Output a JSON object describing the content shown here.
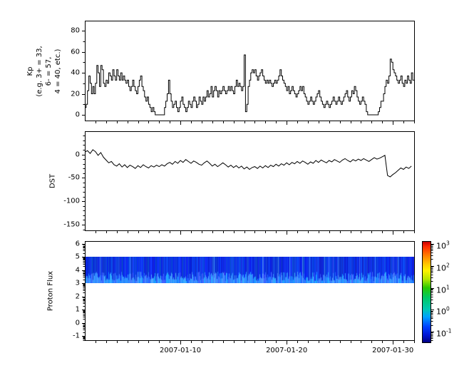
{
  "figure": {
    "background": "#ffffff",
    "line_color": "#000000"
  },
  "x_axis": {
    "start_date": "2007-01-01",
    "span_days": 31.07,
    "major_ticks": [
      {
        "day": 9,
        "label": "2007-01-10"
      },
      {
        "day": 19,
        "label": "2007-01-20"
      },
      {
        "day": 29,
        "label": "2007-01-30"
      }
    ],
    "minor_tick_every_days": 1
  },
  "chart_data": [
    {
      "type": "line",
      "name": "kp",
      "style": "steps-post",
      "ylabel": "Kp\n(e.g. 3+ = 33,\n6- = 57,\n4 = 40, etc.)",
      "ylim": [
        -6.1,
        89.6
      ],
      "yticks": [
        0,
        20,
        40,
        60,
        80
      ],
      "y_minor_step": 10,
      "x_step_hours": 3,
      "values": [
        7,
        10,
        23,
        37,
        30,
        20,
        27,
        20,
        30,
        47,
        40,
        27,
        47,
        43,
        30,
        27,
        33,
        30,
        40,
        37,
        33,
        43,
        37,
        33,
        43,
        37,
        33,
        40,
        33,
        37,
        33,
        30,
        33,
        27,
        23,
        27,
        33,
        27,
        23,
        20,
        27,
        33,
        37,
        27,
        23,
        17,
        13,
        17,
        10,
        7,
        3,
        7,
        3,
        0,
        0,
        0,
        0,
        0,
        0,
        0,
        7,
        13,
        20,
        33,
        20,
        13,
        7,
        10,
        13,
        7,
        3,
        7,
        13,
        17,
        10,
        7,
        3,
        7,
        13,
        10,
        7,
        13,
        17,
        13,
        7,
        10,
        17,
        13,
        10,
        17,
        13,
        17,
        23,
        17,
        20,
        27,
        17,
        23,
        27,
        23,
        17,
        23,
        20,
        23,
        27,
        23,
        20,
        23,
        27,
        23,
        27,
        23,
        20,
        27,
        33,
        27,
        30,
        27,
        23,
        27,
        57,
        3,
        10,
        27,
        33,
        40,
        43,
        40,
        43,
        37,
        33,
        37,
        40,
        43,
        37,
        33,
        30,
        33,
        30,
        33,
        30,
        27,
        30,
        33,
        30,
        33,
        37,
        43,
        37,
        33,
        30,
        27,
        23,
        27,
        20,
        23,
        27,
        23,
        20,
        17,
        20,
        23,
        27,
        23,
        27,
        20,
        17,
        13,
        10,
        13,
        17,
        13,
        10,
        13,
        17,
        20,
        23,
        17,
        13,
        10,
        7,
        10,
        13,
        10,
        7,
        10,
        13,
        17,
        13,
        10,
        13,
        17,
        13,
        10,
        13,
        17,
        20,
        23,
        17,
        13,
        17,
        23,
        20,
        27,
        23,
        17,
        13,
        10,
        13,
        17,
        13,
        10,
        3,
        0,
        0,
        0,
        0,
        0,
        0,
        0,
        0,
        3,
        7,
        13,
        13,
        20,
        27,
        33,
        30,
        37,
        53,
        50,
        43,
        40,
        37,
        33,
        30,
        33,
        37,
        30,
        27,
        33,
        30,
        37,
        33,
        30,
        40,
        33
      ]
    },
    {
      "type": "line",
      "name": "dst",
      "style": "linear",
      "ylabel": "DST",
      "ylim": [
        -163.7,
        49.5
      ],
      "yticks": [
        0,
        -50,
        -100,
        -150
      ],
      "y_minor_step": 10,
      "x_step_hours": 6,
      "values": [
        5,
        8,
        2,
        10,
        6,
        -2,
        4,
        -6,
        -12,
        -18,
        -15,
        -22,
        -25,
        -20,
        -27,
        -22,
        -28,
        -23,
        -26,
        -30,
        -24,
        -28,
        -22,
        -26,
        -29,
        -24,
        -27,
        -23,
        -26,
        -22,
        -25,
        -20,
        -17,
        -21,
        -15,
        -19,
        -13,
        -17,
        -11,
        -15,
        -19,
        -14,
        -17,
        -21,
        -23,
        -18,
        -14,
        -19,
        -25,
        -21,
        -26,
        -22,
        -18,
        -22,
        -27,
        -23,
        -28,
        -24,
        -29,
        -25,
        -31,
        -27,
        -32,
        -28,
        -26,
        -30,
        -25,
        -29,
        -24,
        -28,
        -23,
        -26,
        -21,
        -25,
        -20,
        -23,
        -18,
        -22,
        -17,
        -20,
        -15,
        -19,
        -14,
        -17,
        -21,
        -16,
        -19,
        -13,
        -17,
        -12,
        -15,
        -18,
        -13,
        -16,
        -11,
        -14,
        -17,
        -12,
        -9,
        -13,
        -16,
        -11,
        -14,
        -10,
        -13,
        -9,
        -12,
        -15,
        -11,
        -7,
        -10,
        -8,
        -5,
        -2,
        -45,
        -48,
        -43,
        -39,
        -34,
        -29,
        -32,
        -27,
        -30,
        -25
      ]
    },
    {
      "type": "heatmap",
      "name": "proton_flux",
      "ylabel": "Proton Flux",
      "ylim": [
        -1.37,
        6.2
      ],
      "yticks": [
        6,
        5,
        4,
        3,
        2,
        1,
        0,
        -1
      ],
      "y_minor": "log-decade",
      "band": {
        "y_min": 3,
        "y_max": 5,
        "approx_flux_log10_range": [
          -1.2,
          -0.3
        ],
        "base_color_rgb_ranges": {
          "r": [
            4,
            24
          ],
          "g": [
            25,
            80
          ],
          "b": [
            200,
            255
          ]
        },
        "bright_streak_color_rgb_ranges": {
          "r": [
            20,
            80
          ],
          "g": [
            90,
            180
          ],
          "b": [
            255,
            255
          ]
        },
        "seed": 1234567
      },
      "colorbar": {
        "log10_min": -1.52,
        "log10_max": 3.13,
        "tick_exponents": [
          3,
          2,
          1,
          0,
          -1
        ],
        "gradient_stops": [
          {
            "v": 3.13,
            "color": "#c80000"
          },
          {
            "v": 2.9,
            "color": "#ff2a00"
          },
          {
            "v": 2.5,
            "color": "#ff7c00"
          },
          {
            "v": 2.1,
            "color": "#ffc600"
          },
          {
            "v": 1.8,
            "color": "#fff200"
          },
          {
            "v": 1.4,
            "color": "#b4e600"
          },
          {
            "v": 1.0,
            "color": "#28c800"
          },
          {
            "v": 0.55,
            "color": "#00c864"
          },
          {
            "v": 0.0,
            "color": "#00c8b4"
          },
          {
            "v": -0.35,
            "color": "#00a0ff"
          },
          {
            "v": -0.8,
            "color": "#0040ff"
          },
          {
            "v": -1.2,
            "color": "#0014d2"
          },
          {
            "v": -1.52,
            "color": "#000082"
          }
        ]
      }
    }
  ]
}
